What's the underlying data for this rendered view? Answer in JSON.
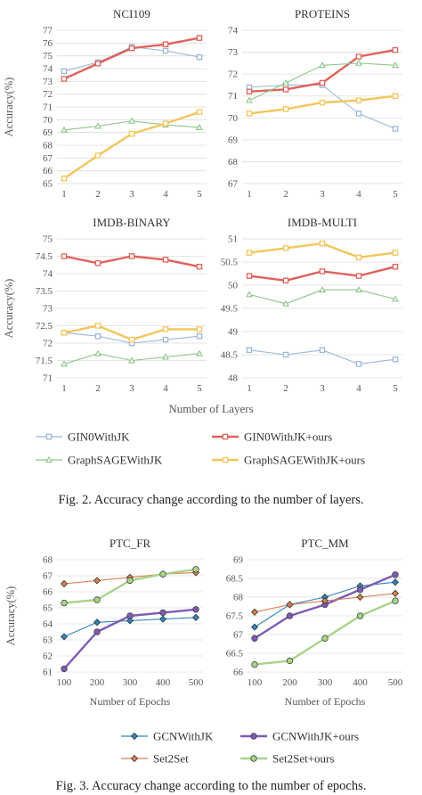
{
  "colors": {
    "gin0": "#9bb8d9",
    "gin0_ours": "#e0625a",
    "sage": "#8ec58a",
    "sage_ours": "#f3c55b",
    "gcn": "#2f86c0",
    "gcn_ours": "#7e5bb5",
    "set2set": "#d9804d",
    "set2set_ours": "#a8d48a",
    "grid": "#dcdcdc"
  },
  "figure2": {
    "caption": "Fig. 2. Accuracy change according to the number of layers.",
    "shared_xlabel": "Number of Layers",
    "shared_ylabel": "Accuracy(%)",
    "legend": [
      "GIN0WithJK",
      "GIN0WithJK+ours",
      "GraphSAGEWithJK",
      "GraphSAGEWithJK+ours"
    ]
  },
  "figure3": {
    "caption": "Fig. 3. Accuracy change according to the number of epochs.",
    "legend": [
      "GCNWithJK",
      "GCNWithJK+ours",
      "Set2Set",
      "Set2Set+ours"
    ]
  },
  "chart_data": [
    {
      "type": "line",
      "title": "NCI109",
      "x": [
        1,
        2,
        3,
        4,
        5
      ],
      "ylim": [
        65,
        77
      ],
      "yticks": [
        65,
        66,
        67,
        68,
        69,
        70,
        71,
        72,
        73,
        74,
        75,
        76,
        77
      ],
      "ylabel": "Accuracy(%)",
      "xlabel": "",
      "series": [
        {
          "name": "GIN0WithJK",
          "values": [
            73.8,
            74.5,
            75.7,
            75.4,
            74.9
          ]
        },
        {
          "name": "GIN0WithJK+ours",
          "values": [
            73.2,
            74.4,
            75.6,
            75.9,
            76.4
          ]
        },
        {
          "name": "GraphSAGEWithJK",
          "values": [
            69.2,
            69.5,
            69.9,
            69.6,
            69.4
          ]
        },
        {
          "name": "GraphSAGEWithJK+ours",
          "values": [
            65.4,
            67.2,
            68.9,
            69.7,
            70.6
          ]
        }
      ]
    },
    {
      "type": "line",
      "title": "PROTEINS",
      "x": [
        1,
        2,
        3,
        4,
        5
      ],
      "ylim": [
        67,
        74
      ],
      "yticks": [
        67,
        68,
        69,
        70,
        71,
        72,
        73,
        74
      ],
      "ylabel": "",
      "xlabel": "",
      "series": [
        {
          "name": "GIN0WithJK",
          "values": [
            71.4,
            71.5,
            71.5,
            70.2,
            69.5
          ]
        },
        {
          "name": "GIN0WithJK+ours",
          "values": [
            71.2,
            71.3,
            71.6,
            72.8,
            73.1
          ]
        },
        {
          "name": "GraphSAGEWithJK",
          "values": [
            70.8,
            71.6,
            72.4,
            72.5,
            72.4
          ]
        },
        {
          "name": "GraphSAGEWithJK+ours",
          "values": [
            70.2,
            70.4,
            70.7,
            70.8,
            71.0
          ]
        }
      ]
    },
    {
      "type": "line",
      "title": "IMDB-BINARY",
      "x": [
        1,
        2,
        3,
        4,
        5
      ],
      "ylim": [
        71,
        75
      ],
      "yticks": [
        71,
        71.5,
        72,
        72.5,
        73,
        73.5,
        74,
        74.5,
        75
      ],
      "ylabel": "Accuracy(%)",
      "xlabel": "Number of Layers",
      "series": [
        {
          "name": "GIN0WithJK",
          "values": [
            72.3,
            72.2,
            72.0,
            72.1,
            72.2
          ]
        },
        {
          "name": "GIN0WithJK+ours",
          "values": [
            74.5,
            74.3,
            74.5,
            74.4,
            74.2
          ]
        },
        {
          "name": "GraphSAGEWithJK",
          "values": [
            71.4,
            71.7,
            71.5,
            71.6,
            71.7
          ]
        },
        {
          "name": "GraphSAGEWithJK+ours",
          "values": [
            72.3,
            72.5,
            72.1,
            72.4,
            72.4
          ]
        }
      ]
    },
    {
      "type": "line",
      "title": "IMDB-MULTI",
      "x": [
        1,
        2,
        3,
        4,
        5
      ],
      "ylim": [
        48,
        51
      ],
      "yticks": [
        48,
        48.5,
        49,
        49.5,
        50,
        50.5,
        51
      ],
      "ylabel": "",
      "xlabel": "Number of Layers",
      "series": [
        {
          "name": "GIN0WithJK",
          "values": [
            48.6,
            48.5,
            48.6,
            48.3,
            48.4
          ]
        },
        {
          "name": "GIN0WithJK+ours",
          "values": [
            50.2,
            50.1,
            50.3,
            50.2,
            50.4
          ]
        },
        {
          "name": "GraphSAGEWithJK",
          "values": [
            49.8,
            49.6,
            49.9,
            49.9,
            49.7
          ]
        },
        {
          "name": "GraphSAGEWithJK+ours",
          "values": [
            50.7,
            50.8,
            50.9,
            50.6,
            50.7
          ]
        }
      ]
    },
    {
      "type": "line",
      "title": "PTC_FR",
      "x": [
        100,
        200,
        300,
        400,
        500
      ],
      "ylim": [
        61,
        68
      ],
      "yticks": [
        61,
        62,
        63,
        64,
        65,
        66,
        67,
        68
      ],
      "ylabel": "Accuracy(%)",
      "xlabel": "Number of Epochs",
      "series": [
        {
          "name": "GCNWithJK",
          "values": [
            63.2,
            64.1,
            64.2,
            64.3,
            64.4
          ]
        },
        {
          "name": "GCNWithJK+ours",
          "values": [
            61.2,
            63.5,
            64.5,
            64.7,
            64.9
          ]
        },
        {
          "name": "Set2Set",
          "values": [
            66.5,
            66.7,
            66.9,
            67.1,
            67.2
          ]
        },
        {
          "name": "Set2Set+ours",
          "values": [
            65.3,
            65.5,
            66.7,
            67.1,
            67.4
          ]
        }
      ]
    },
    {
      "type": "line",
      "title": "PTC_MM",
      "x": [
        100,
        200,
        300,
        400,
        500
      ],
      "ylim": [
        66,
        69
      ],
      "yticks": [
        66,
        66.5,
        67,
        67.5,
        68,
        68.5,
        69
      ],
      "ylabel": "",
      "xlabel": "Number of Epochs",
      "series": [
        {
          "name": "GCNWithJK",
          "values": [
            67.2,
            67.8,
            68.0,
            68.3,
            68.4
          ]
        },
        {
          "name": "GCNWithJK+ours",
          "values": [
            66.9,
            67.5,
            67.8,
            68.2,
            68.6
          ]
        },
        {
          "name": "Set2Set",
          "values": [
            67.6,
            67.8,
            67.9,
            68.0,
            68.1
          ]
        },
        {
          "name": "Set2Set+ours",
          "values": [
            66.2,
            66.3,
            66.9,
            67.5,
            67.9
          ]
        }
      ]
    }
  ]
}
